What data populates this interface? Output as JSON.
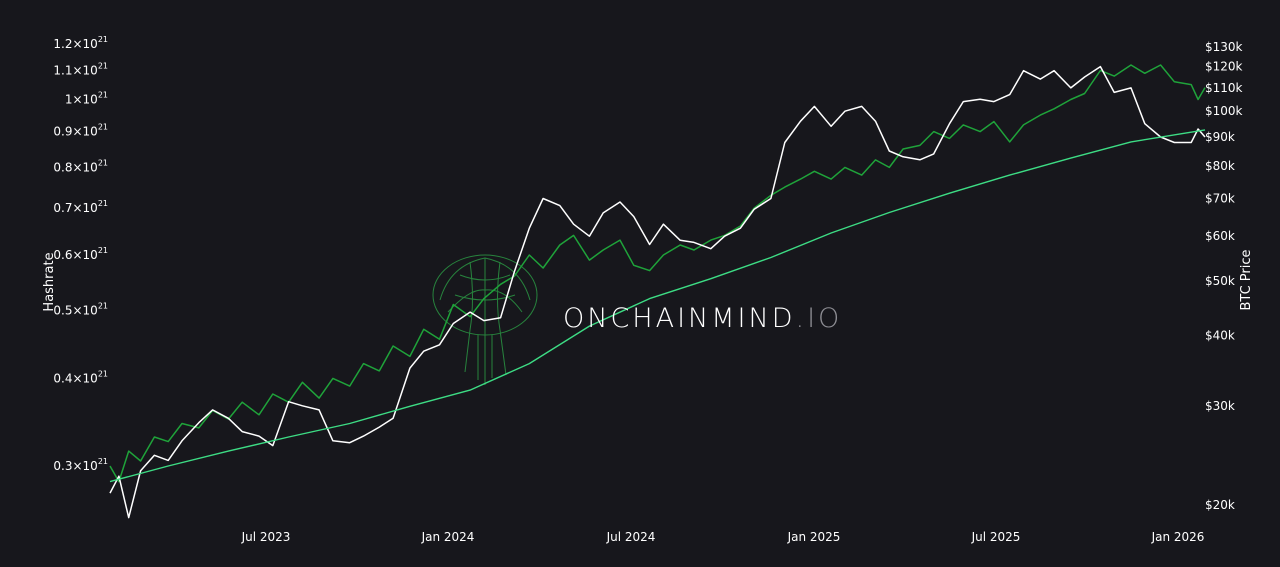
{
  "chart_data": {
    "type": "line",
    "left_axis_label": "Hashrate",
    "right_axis_label": "BTC Price",
    "x_ticks": [
      "Jul 2023",
      "Jan 2024",
      "Jul 2024",
      "Jan 2025",
      "Jul 2025",
      "Jan 2026"
    ],
    "y_left_scale": "log",
    "y_left_ticks": [
      {
        "value": 1.2e+21,
        "mantissa": "1.2×10",
        "exp": "21"
      },
      {
        "value": 1.1e+21,
        "mantissa": "1.1×10",
        "exp": "21"
      },
      {
        "value": 1e+21,
        "mantissa": "1×10",
        "exp": "21"
      },
      {
        "value": 9e+20,
        "mantissa": "0.9×10",
        "exp": "21"
      },
      {
        "value": 8e+20,
        "mantissa": "0.8×10",
        "exp": "21"
      },
      {
        "value": 7e+20,
        "mantissa": "0.7×10",
        "exp": "21"
      },
      {
        "value": 6e+20,
        "mantissa": "0.6×10",
        "exp": "21"
      },
      {
        "value": 5e+20,
        "mantissa": "0.5×10",
        "exp": "21"
      },
      {
        "value": 4e+20,
        "mantissa": "0.4×10",
        "exp": "21"
      },
      {
        "value": 3e+20,
        "mantissa": "0.3×10",
        "exp": "21"
      }
    ],
    "y_right_scale": "log",
    "y_right_ticks": [
      {
        "value": 130000,
        "label": "$130k"
      },
      {
        "value": 120000,
        "label": "$120k"
      },
      {
        "value": 110000,
        "label": "$110k"
      },
      {
        "value": 100000,
        "label": "$100k"
      },
      {
        "value": 90000,
        "label": "$90k"
      },
      {
        "value": 80000,
        "label": "$80k"
      },
      {
        "value": 70000,
        "label": "$70k"
      },
      {
        "value": 60000,
        "label": "$60k"
      },
      {
        "value": 50000,
        "label": "$50k"
      },
      {
        "value": 40000,
        "label": "$40k"
      },
      {
        "value": 30000,
        "label": "$30k"
      },
      {
        "value": 20000,
        "label": "$20k"
      }
    ],
    "grid": false,
    "legend": "none",
    "series": [
      {
        "color": "#1fa33a",
        "axis": "left",
        "points": [
          [
            "2023-01-01",
            3e+20
          ],
          [
            "2023-01-10",
            2.85e+20
          ],
          [
            "2023-01-20",
            3.15e+20
          ],
          [
            "2023-02-01",
            3.05e+20
          ],
          [
            "2023-02-15",
            3.3e+20
          ],
          [
            "2023-03-01",
            3.25e+20
          ],
          [
            "2023-03-15",
            3.45e+20
          ],
          [
            "2023-04-01",
            3.4e+20
          ],
          [
            "2023-04-15",
            3.6e+20
          ],
          [
            "2023-05-01",
            3.5e+20
          ],
          [
            "2023-05-15",
            3.7e+20
          ],
          [
            "2023-06-01",
            3.55e+20
          ],
          [
            "2023-06-15",
            3.8e+20
          ],
          [
            "2023-07-01",
            3.7e+20
          ],
          [
            "2023-07-15",
            3.95e+20
          ],
          [
            "2023-08-01",
            3.75e+20
          ],
          [
            "2023-08-15",
            4e+20
          ],
          [
            "2023-09-01",
            3.9e+20
          ],
          [
            "2023-09-15",
            4.2e+20
          ],
          [
            "2023-10-01",
            4.1e+20
          ],
          [
            "2023-10-15",
            4.45e+20
          ],
          [
            "2023-11-01",
            4.3e+20
          ],
          [
            "2023-11-15",
            4.7e+20
          ],
          [
            "2023-12-01",
            4.55e+20
          ],
          [
            "2023-12-15",
            5.1e+20
          ],
          [
            "2024-01-01",
            4.9e+20
          ],
          [
            "2024-01-15",
            5.2e+20
          ],
          [
            "2024-02-01",
            5.45e+20
          ],
          [
            "2024-02-15",
            5.6e+20
          ],
          [
            "2024-03-01",
            6e+20
          ],
          [
            "2024-03-15",
            5.75e+20
          ],
          [
            "2024-04-01",
            6.2e+20
          ],
          [
            "2024-04-15",
            6.4e+20
          ],
          [
            "2024-05-01",
            5.9e+20
          ],
          [
            "2024-05-15",
            6.1e+20
          ],
          [
            "2024-06-01",
            6.3e+20
          ],
          [
            "2024-06-15",
            5.8e+20
          ],
          [
            "2024-07-01",
            5.7e+20
          ],
          [
            "2024-07-15",
            6e+20
          ],
          [
            "2024-08-01",
            6.2e+20
          ],
          [
            "2024-08-15",
            6.1e+20
          ],
          [
            "2024-09-01",
            6.3e+20
          ],
          [
            "2024-09-15",
            6.4e+20
          ],
          [
            "2024-10-01",
            6.6e+20
          ],
          [
            "2024-10-15",
            7e+20
          ],
          [
            "2024-11-01",
            7.3e+20
          ],
          [
            "2024-11-15",
            7.5e+20
          ],
          [
            "2024-12-01",
            7.7e+20
          ],
          [
            "2024-12-15",
            7.9e+20
          ],
          [
            "2025-01-01",
            7.7e+20
          ],
          [
            "2025-01-15",
            8e+20
          ],
          [
            "2025-02-01",
            7.8e+20
          ],
          [
            "2025-02-15",
            8.2e+20
          ],
          [
            "2025-03-01",
            8e+20
          ],
          [
            "2025-03-15",
            8.5e+20
          ],
          [
            "2025-04-01",
            8.6e+20
          ],
          [
            "2025-04-15",
            9e+20
          ],
          [
            "2025-05-01",
            8.8e+20
          ],
          [
            "2025-05-15",
            9.2e+20
          ],
          [
            "2025-06-01",
            9e+20
          ],
          [
            "2025-06-15",
            9.3e+20
          ],
          [
            "2025-07-01",
            8.7e+20
          ],
          [
            "2025-07-15",
            9.2e+20
          ],
          [
            "2025-08-01",
            9.5e+20
          ],
          [
            "2025-08-15",
            9.7e+20
          ],
          [
            "2025-09-01",
            1e+21
          ],
          [
            "2025-09-15",
            1.02e+21
          ],
          [
            "2025-10-01",
            1.1e+21
          ],
          [
            "2025-10-15",
            1.08e+21
          ],
          [
            "2025-11-01",
            1.12e+21
          ],
          [
            "2025-11-15",
            1.09e+21
          ],
          [
            "2025-12-01",
            1.12e+21
          ],
          [
            "2025-12-15",
            1.06e+21
          ],
          [
            "2026-01-01",
            1.05e+21
          ],
          [
            "2026-01-08",
            1e+21
          ],
          [
            "2026-01-15",
            1.04e+21
          ]
        ]
      },
      {
        "color": "#ffffff",
        "axis": "right",
        "points": [
          [
            "2023-01-01",
            21000
          ],
          [
            "2023-01-10",
            22500
          ],
          [
            "2023-01-20",
            19000
          ],
          [
            "2023-02-01",
            23000
          ],
          [
            "2023-02-15",
            24500
          ],
          [
            "2023-03-01",
            24000
          ],
          [
            "2023-03-15",
            26000
          ],
          [
            "2023-04-01",
            28000
          ],
          [
            "2023-04-15",
            29500
          ],
          [
            "2023-05-01",
            28500
          ],
          [
            "2023-05-15",
            27000
          ],
          [
            "2023-06-01",
            26500
          ],
          [
            "2023-06-15",
            25500
          ],
          [
            "2023-07-01",
            30500
          ],
          [
            "2023-07-15",
            30000
          ],
          [
            "2023-08-01",
            29500
          ],
          [
            "2023-08-15",
            26000
          ],
          [
            "2023-09-01",
            25800
          ],
          [
            "2023-09-15",
            26500
          ],
          [
            "2023-10-01",
            27500
          ],
          [
            "2023-10-15",
            28500
          ],
          [
            "2023-11-01",
            35000
          ],
          [
            "2023-11-15",
            37500
          ],
          [
            "2023-12-01",
            38500
          ],
          [
            "2023-12-15",
            42000
          ],
          [
            "2024-01-01",
            44000
          ],
          [
            "2024-01-15",
            42500
          ],
          [
            "2024-02-01",
            43000
          ],
          [
            "2024-02-15",
            52000
          ],
          [
            "2024-03-01",
            62000
          ],
          [
            "2024-03-15",
            70000
          ],
          [
            "2024-04-01",
            68000
          ],
          [
            "2024-04-15",
            63000
          ],
          [
            "2024-05-01",
            60000
          ],
          [
            "2024-05-15",
            66000
          ],
          [
            "2024-06-01",
            69000
          ],
          [
            "2024-06-15",
            65000
          ],
          [
            "2024-07-01",
            58000
          ],
          [
            "2024-07-15",
            63000
          ],
          [
            "2024-08-01",
            59000
          ],
          [
            "2024-08-15",
            58500
          ],
          [
            "2024-09-01",
            57000
          ],
          [
            "2024-09-15",
            60000
          ],
          [
            "2024-10-01",
            62000
          ],
          [
            "2024-10-15",
            67000
          ],
          [
            "2024-11-01",
            70000
          ],
          [
            "2024-11-15",
            88000
          ],
          [
            "2024-12-01",
            96000
          ],
          [
            "2024-12-15",
            102000
          ],
          [
            "2025-01-01",
            94000
          ],
          [
            "2025-01-15",
            100000
          ],
          [
            "2025-02-01",
            102000
          ],
          [
            "2025-02-15",
            96000
          ],
          [
            "2025-03-01",
            85000
          ],
          [
            "2025-03-15",
            83000
          ],
          [
            "2025-04-01",
            82000
          ],
          [
            "2025-04-15",
            84000
          ],
          [
            "2025-05-01",
            95000
          ],
          [
            "2025-05-15",
            104000
          ],
          [
            "2025-06-01",
            105000
          ],
          [
            "2025-06-15",
            104000
          ],
          [
            "2025-07-01",
            107000
          ],
          [
            "2025-07-15",
            118000
          ],
          [
            "2025-08-01",
            114000
          ],
          [
            "2025-08-15",
            118000
          ],
          [
            "2025-09-01",
            110000
          ],
          [
            "2025-09-15",
            115000
          ],
          [
            "2025-10-01",
            120000
          ],
          [
            "2025-10-15",
            108000
          ],
          [
            "2025-11-01",
            110000
          ],
          [
            "2025-11-15",
            95000
          ],
          [
            "2025-12-01",
            90000
          ],
          [
            "2025-12-15",
            88000
          ],
          [
            "2026-01-01",
            88000
          ],
          [
            "2026-01-08",
            93000
          ],
          [
            "2026-01-15",
            90000
          ]
        ]
      },
      {
        "color": "#3ddc84",
        "axis": "left",
        "points": [
          [
            "2023-01-01",
            2.85e+20
          ],
          [
            "2023-03-01",
            3e+20
          ],
          [
            "2023-05-01",
            3.15e+20
          ],
          [
            "2023-07-01",
            3.3e+20
          ],
          [
            "2023-09-01",
            3.45e+20
          ],
          [
            "2023-11-01",
            3.65e+20
          ],
          [
            "2024-01-01",
            3.85e+20
          ],
          [
            "2024-03-01",
            4.2e+20
          ],
          [
            "2024-05-01",
            4.75e+20
          ],
          [
            "2024-07-01",
            5.2e+20
          ],
          [
            "2024-09-01",
            5.55e+20
          ],
          [
            "2024-11-01",
            5.95e+20
          ],
          [
            "2025-01-01",
            6.45e+20
          ],
          [
            "2025-03-01",
            6.9e+20
          ],
          [
            "2025-05-01",
            7.35e+20
          ],
          [
            "2025-07-01",
            7.8e+20
          ],
          [
            "2025-09-01",
            8.25e+20
          ],
          [
            "2025-11-01",
            8.7e+20
          ],
          [
            "2026-01-15",
            9.05e+20
          ]
        ]
      }
    ]
  },
  "watermark": {
    "main": "ONCHAINMIND",
    "suffix": ".IO",
    "logo": "brain-on-circuit-logo"
  }
}
